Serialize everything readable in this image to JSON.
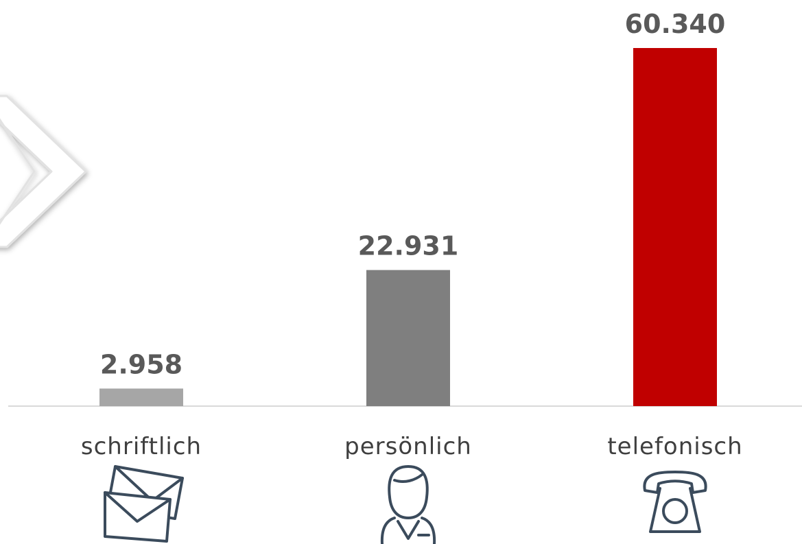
{
  "chart_data": {
    "type": "bar",
    "categories": [
      "schriftlich",
      "persönlich",
      "telefonisch"
    ],
    "values": [
      2958,
      22931,
      60340
    ],
    "value_labels": [
      "2.958",
      "22.931",
      "60.340"
    ],
    "colors": [
      "#a6a6a6",
      "#7f7f7f",
      "#c00000"
    ]
  }
}
